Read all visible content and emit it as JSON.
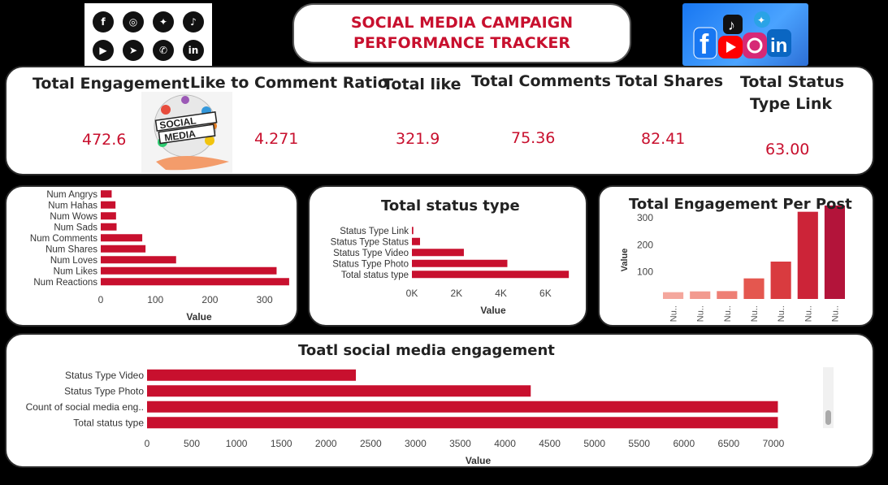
{
  "header": {
    "title_line1": "SOCIAL MEDIA CAMPAIGN",
    "title_line2": "PERFORMANCE TRACKER",
    "social_icons": [
      "facebook-icon",
      "instagram-icon",
      "twitter-icon",
      "tiktok-icon",
      "youtube-icon",
      "telegram-icon",
      "whatsapp-icon",
      "linkedin-icon"
    ]
  },
  "kpis": [
    {
      "label": "Total Engagement",
      "value": "472.6"
    },
    {
      "label": "Like to Comment Ratio",
      "value": "4.271"
    },
    {
      "label": "Total like",
      "value": "321.9"
    },
    {
      "label": "Total Comments",
      "value": "75.36"
    },
    {
      "label": "Total Shares",
      "value": "82.41"
    },
    {
      "label": "Total Status Type Link",
      "label_line1": "Total Status",
      "label_line2": "Type Link",
      "value": "63.00"
    }
  ],
  "colors": {
    "accent": "#c8102e",
    "bar": "#c8102e",
    "background": "#000000"
  },
  "chart_data": [
    {
      "type": "bar",
      "orientation": "horizontal",
      "title": "",
      "xlabel": "Value",
      "ylabel": "",
      "categories": [
        "Num Angrys",
        "Num Hahas",
        "Num Wows",
        "Num Sads",
        "Num Comments",
        "Num Shares",
        "Num Loves",
        "Num Likes",
        "Num Reactions"
      ],
      "values": [
        20,
        27,
        28,
        29,
        76,
        82,
        138,
        322,
        345
      ],
      "xlim": [
        0,
        360
      ],
      "xticks": [
        0,
        100,
        200,
        300
      ]
    },
    {
      "type": "bar",
      "orientation": "horizontal",
      "title": "Total status type",
      "xlabel": "Value",
      "ylabel": "",
      "categories": [
        "Status Type Link",
        "Status Type Status",
        "Status Type Video",
        "Status Type Photo",
        "Total status type"
      ],
      "values": [
        63,
        365,
        2334,
        4288,
        7050
      ],
      "xlim": [
        0,
        7300
      ],
      "xticks": [
        0,
        2000,
        4000,
        6000
      ],
      "xtick_labels": [
        "0K",
        "2K",
        "4K",
        "6K"
      ]
    },
    {
      "type": "bar",
      "orientation": "vertical",
      "title": "Total Engagement Per Post",
      "xlabel": "",
      "ylabel": "Value",
      "categories": [
        "Nu..",
        "Nu..",
        "Nu..",
        "Nu..",
        "Nu..",
        "Nu..",
        "Nu.."
      ],
      "values": [
        25,
        28,
        29,
        76,
        138,
        322,
        345
      ],
      "colors": [
        "#f4a79d",
        "#f29a8f",
        "#ee7f75",
        "#e4574f",
        "#d93b3f",
        "#cc2438",
        "#b3143a"
      ],
      "ylim": [
        0,
        360
      ],
      "yticks": [
        100,
        200,
        300
      ]
    },
    {
      "type": "bar",
      "orientation": "horizontal",
      "title": "Toatl social media engagement",
      "xlabel": "Value",
      "ylabel": "",
      "categories": [
        "Status Type Video",
        "Status Type Photo",
        "Count of social media eng..",
        "Total status type"
      ],
      "values": [
        2334,
        4288,
        7050,
        7050
      ],
      "xlim": [
        0,
        7400
      ],
      "xticks": [
        0,
        500,
        1000,
        1500,
        2000,
        2500,
        3000,
        3500,
        4000,
        4500,
        5000,
        5500,
        6000,
        6500,
        7000
      ]
    }
  ]
}
